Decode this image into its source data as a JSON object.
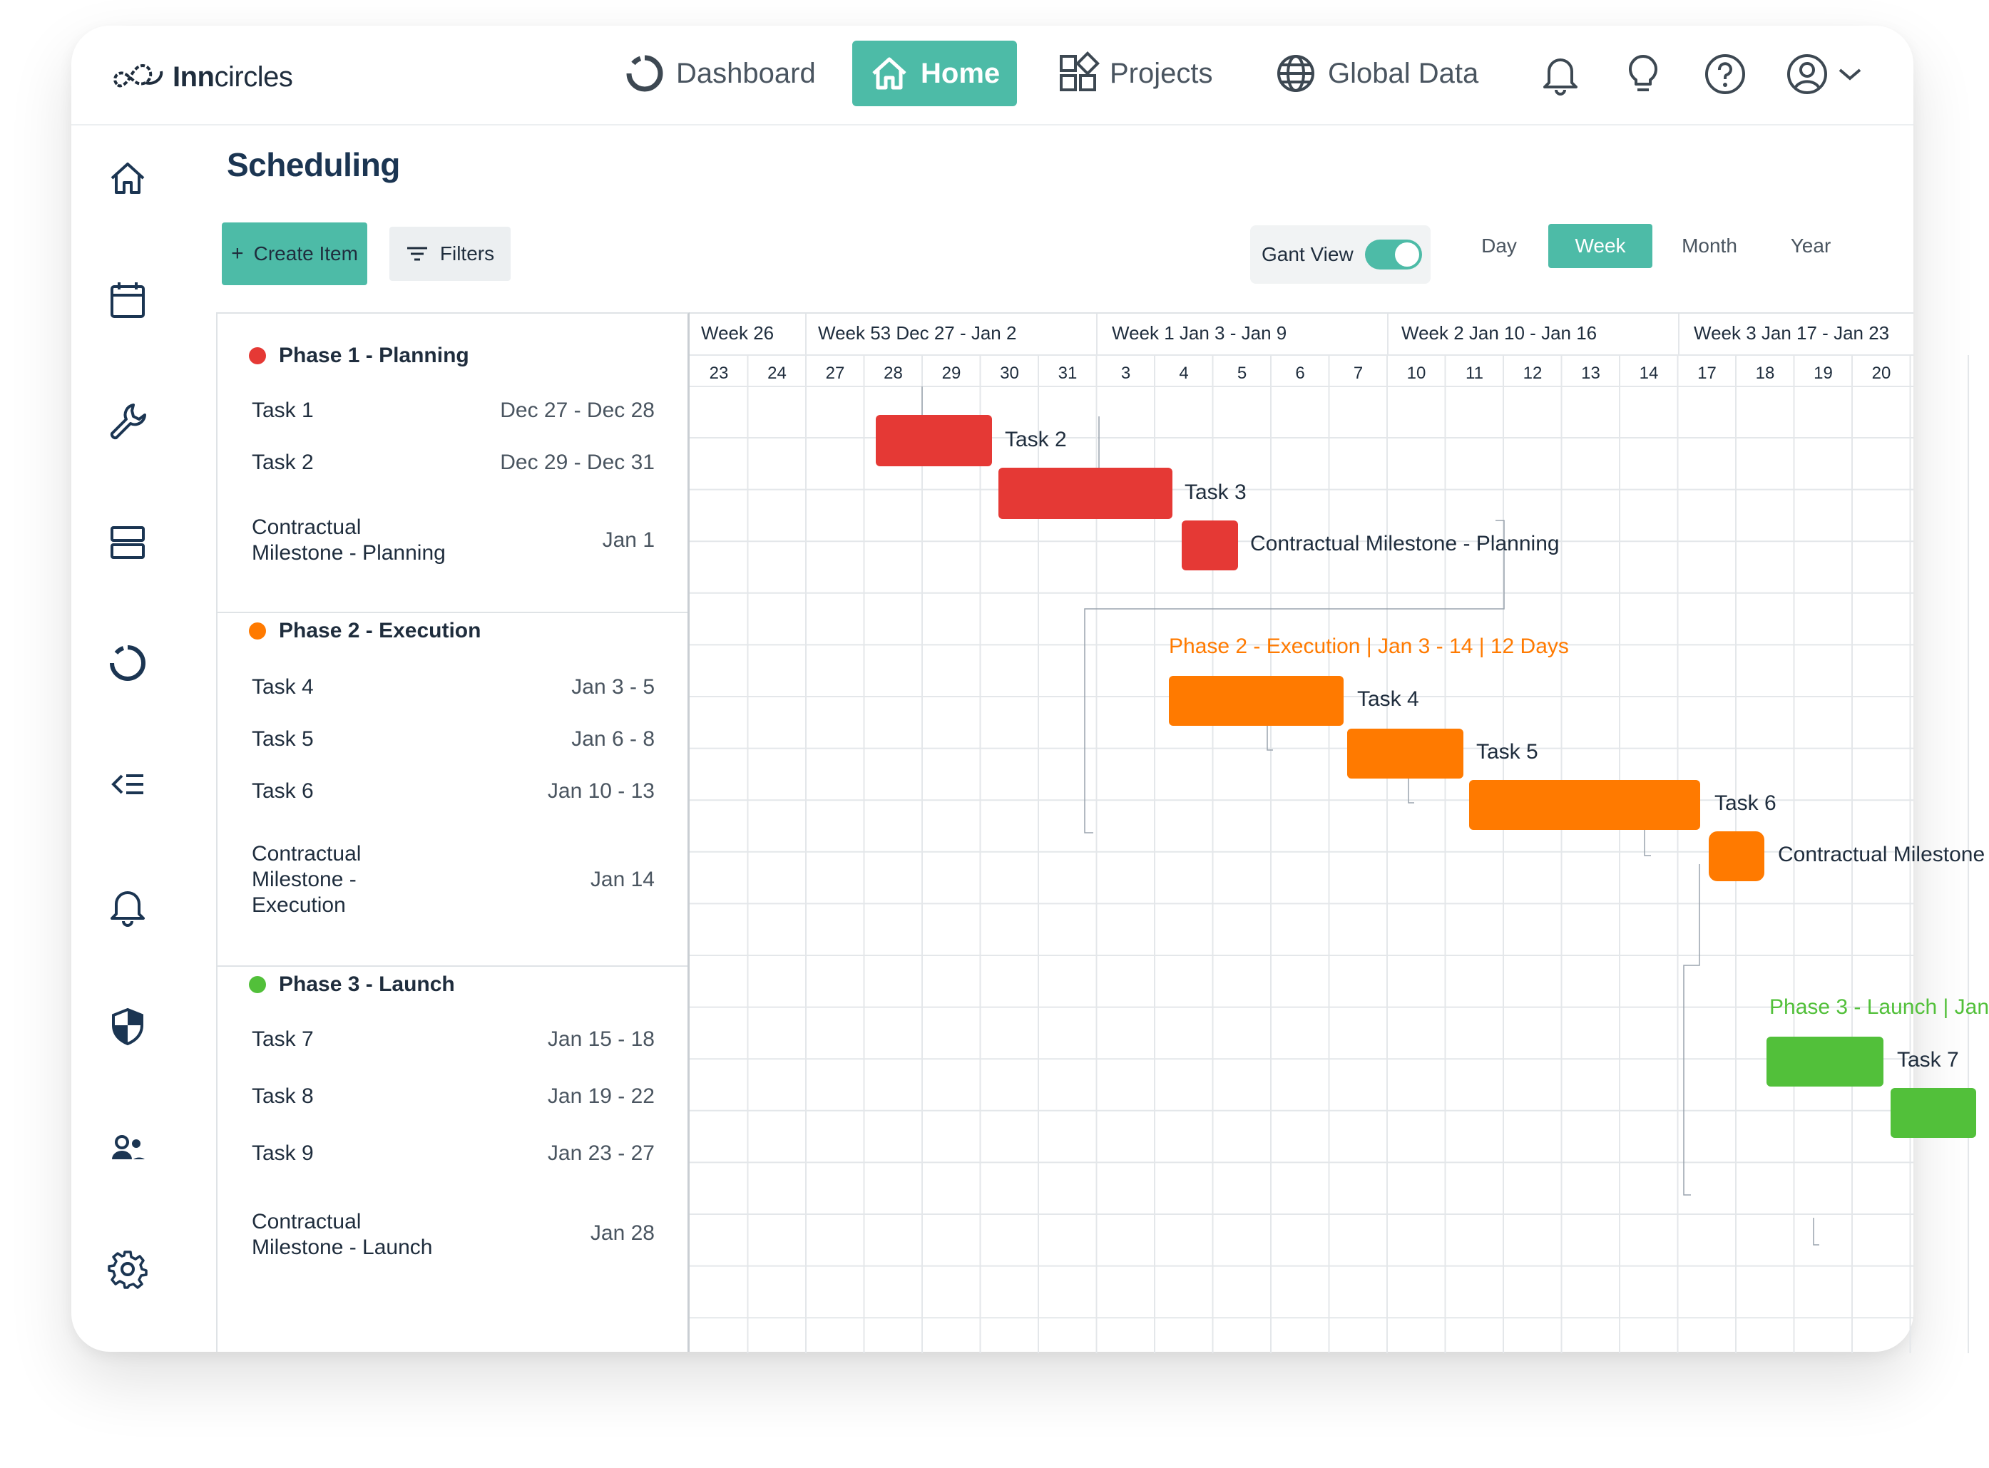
{
  "app": {
    "logo_text": "Inncircles"
  },
  "nav": {
    "items": [
      {
        "label": "Dashboard"
      },
      {
        "label": "Home"
      },
      {
        "label": "Projects"
      },
      {
        "label": "Global Data"
      }
    ]
  },
  "page": {
    "title": "Scheduling"
  },
  "toolbar": {
    "create_label": "Create Item",
    "filters_label": "Filters",
    "gant_view_label": "Gant View",
    "views": [
      "Day",
      "Week",
      "Month",
      "Year"
    ],
    "active_view": "Week"
  },
  "colors": {
    "accent": "#4dbba7",
    "phase1": "#e53935",
    "phase2": "#ff7a00",
    "phase3": "#52c03a"
  },
  "task_list": {
    "phases": [
      {
        "title": "Phase 1 - Planning",
        "tasks": [
          {
            "name": "Task 1",
            "dates": "Dec 27 - Dec 28"
          },
          {
            "name": "Task 2",
            "dates": "Dec 29 - Dec 31"
          },
          {
            "name_line1": "Contractual",
            "name_line2": "Milestone - Planning",
            "dates": "Jan 1"
          }
        ]
      },
      {
        "title": "Phase 2 - Execution",
        "tasks": [
          {
            "name": "Task 4",
            "dates": "Jan 3 - 5"
          },
          {
            "name": "Task 5",
            "dates": "Jan 6 - 8"
          },
          {
            "name": "Task 6",
            "dates": "Jan 10 - 13"
          },
          {
            "name_line1": "Contractual",
            "name_line2": "Milestone -",
            "name_line3": "Execution",
            "dates": "Jan 14"
          }
        ]
      },
      {
        "title": "Phase 3 - Launch",
        "tasks": [
          {
            "name": "Task 7",
            "dates": "Jan 15 - 18"
          },
          {
            "name": "Task 8",
            "dates": "Jan 19 - 22"
          },
          {
            "name": "Task 9",
            "dates": "Jan 23 - 27"
          },
          {
            "name_line1": "Contractual",
            "name_line2": "Milestone - Launch",
            "dates": "Jan 28"
          }
        ]
      }
    ]
  },
  "gantt": {
    "weeks": [
      "Week 26",
      "Week 53 Dec 27 - Jan 2",
      "Week 1 Jan 3 - Jan 9",
      "Week 2 Jan 10 - Jan 16",
      "Week 3 Jan 17 - Jan 23"
    ],
    "days": [
      "23",
      "24",
      "27",
      "28",
      "29",
      "30",
      "31",
      "3",
      "4",
      "5",
      "6",
      "7",
      "10",
      "11",
      "12",
      "13",
      "14",
      "17",
      "18",
      "19",
      "20"
    ],
    "bar_labels": {
      "task2": "Task 2",
      "task3": "Task 3",
      "milestone_planning": "Contractual Milestone  - Planning",
      "task4": "Task 4",
      "task5": "Task 5",
      "task6": "Task 6",
      "milestone_execution": "Contractual Milestone",
      "task7": "Task 7"
    },
    "phase_labels": {
      "execution": "Phase 2 - Execution | Jan 3 - 14 | 12 Days",
      "launch": "Phase 3 - Launch | Jan"
    }
  }
}
